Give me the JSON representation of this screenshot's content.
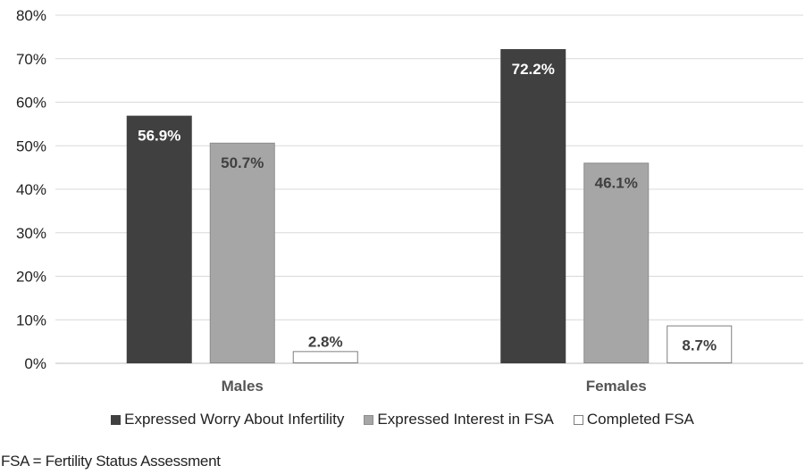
{
  "chart_data": {
    "type": "bar",
    "categories": [
      "Males",
      "Females"
    ],
    "series": [
      {
        "name": "Expressed Worry About Infertility",
        "values": [
          56.9,
          72.2
        ],
        "labels": [
          "56.9%",
          "72.2%"
        ],
        "color": "#404040",
        "label_color": "#ffffff",
        "outline": "#404040"
      },
      {
        "name": "Expressed Interest in FSA",
        "values": [
          50.7,
          46.1
        ],
        "labels": [
          "50.7%",
          "46.1%"
        ],
        "color": "#a6a6a6",
        "label_color": "#404040",
        "outline": "#8c8c8c"
      },
      {
        "name": "Completed FSA",
        "values": [
          2.8,
          8.7
        ],
        "labels": [
          "2.8%",
          "8.7%"
        ],
        "color": "#ffffff",
        "label_color": "#404040",
        "outline": "#7f7f7f"
      }
    ],
    "ylim": [
      0,
      80
    ],
    "yticks": [
      "0%",
      "10%",
      "20%",
      "30%",
      "40%",
      "50%",
      "60%",
      "70%",
      "80%"
    ],
    "grid": true,
    "legend_position": "bottom"
  },
  "footnote": "FSA = Fertility Status Assessment"
}
